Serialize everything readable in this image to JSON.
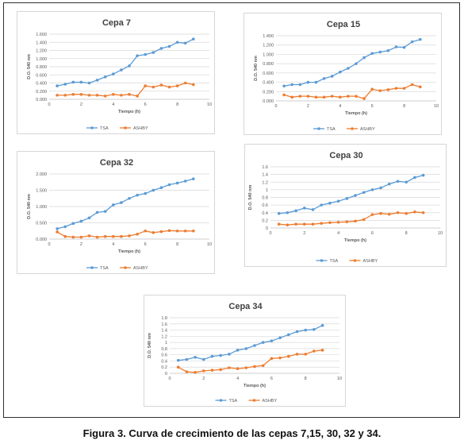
{
  "caption": "Figura 3. Curva de crecimiento de las cepas 7,15, 30, 32 y 34.",
  "colors": {
    "tsa": "#5b9bd5",
    "ashby": "#ed7d31",
    "grid": "#d9d9d9",
    "axis_text": "#595959",
    "title": "#404040"
  },
  "chart_data": [
    {
      "type": "line",
      "title": "Cepa 7",
      "xlabel": "Tiempo (h)",
      "ylabel": "D.O. 540 nm",
      "xlim": [
        0,
        10
      ],
      "ylim": [
        0,
        1.6
      ],
      "xticks": [
        "0",
        "2",
        "4",
        "6",
        "8",
        "10"
      ],
      "yticks": [
        "0.000",
        "0.200",
        "0.400",
        "0.600",
        "0.800",
        "1.000",
        "1.200",
        "1.400",
        "1.600"
      ],
      "legend_position": "bottom",
      "series": [
        {
          "name": "TSA",
          "x": [
            0.5,
            1,
            1.5,
            2,
            2.5,
            3,
            3.5,
            4,
            4.5,
            5,
            5.5,
            6,
            6.5,
            7,
            7.5,
            8,
            8.5,
            9
          ],
          "values": [
            0.33,
            0.37,
            0.42,
            0.42,
            0.4,
            0.47,
            0.55,
            0.62,
            0.72,
            0.82,
            1.07,
            1.1,
            1.15,
            1.25,
            1.3,
            1.4,
            1.38,
            1.48
          ]
        },
        {
          "name": "ASHBY",
          "x": [
            0.5,
            1,
            1.5,
            2,
            2.5,
            3,
            3.5,
            4,
            4.5,
            5,
            5.5,
            6,
            6.5,
            7,
            7.5,
            8,
            8.5,
            9
          ],
          "values": [
            0.1,
            0.1,
            0.12,
            0.12,
            0.1,
            0.1,
            0.08,
            0.12,
            0.1,
            0.12,
            0.08,
            0.33,
            0.3,
            0.35,
            0.3,
            0.33,
            0.4,
            0.36
          ]
        }
      ]
    },
    {
      "type": "line",
      "title": "Cepa 15",
      "xlabel": "Tiempo (h)",
      "ylabel": "D.O. 540 nm",
      "xlim": [
        0,
        10
      ],
      "ylim": [
        0,
        1.4
      ],
      "xticks": [
        "0",
        "2",
        "4",
        "6",
        "8",
        "10"
      ],
      "yticks": [
        "0.000",
        "0.200",
        "0.400",
        "0.600",
        "0.800",
        "1.000",
        "1.200",
        "1.400"
      ],
      "legend_position": "bottom",
      "series": [
        {
          "name": "TSA",
          "x": [
            0.5,
            1,
            1.5,
            2,
            2.5,
            3,
            3.5,
            4,
            4.5,
            5,
            5.5,
            6,
            6.5,
            7,
            7.5,
            8,
            8.5,
            9
          ],
          "values": [
            0.32,
            0.35,
            0.35,
            0.4,
            0.4,
            0.48,
            0.53,
            0.62,
            0.7,
            0.8,
            0.93,
            1.02,
            1.05,
            1.08,
            1.16,
            1.15,
            1.27,
            1.32
          ]
        },
        {
          "name": "ASHBY",
          "x": [
            0.5,
            1,
            1.5,
            2,
            2.5,
            3,
            3.5,
            4,
            4.5,
            5,
            5.5,
            6,
            6.5,
            7,
            7.5,
            8,
            8.5,
            9
          ],
          "values": [
            0.13,
            0.08,
            0.1,
            0.1,
            0.08,
            0.08,
            0.1,
            0.08,
            0.1,
            0.1,
            0.05,
            0.25,
            0.22,
            0.24,
            0.27,
            0.27,
            0.35,
            0.3
          ]
        }
      ]
    },
    {
      "type": "line",
      "title": "Cepa 32",
      "xlabel": "Tiempo (h)",
      "ylabel": "D.O. 540 nm",
      "xlim": [
        0,
        10
      ],
      "ylim": [
        0,
        2
      ],
      "xticks": [
        "0",
        "2",
        "4",
        "6",
        "8",
        "10"
      ],
      "yticks": [
        "0.000",
        "0.500",
        "1.000",
        "1.500",
        "2.000"
      ],
      "legend_position": "bottom",
      "series": [
        {
          "name": "TSA",
          "x": [
            0.5,
            1,
            1.5,
            2,
            2.5,
            3,
            3.5,
            4,
            4.5,
            5,
            5.5,
            6,
            6.5,
            7,
            7.5,
            8,
            8.5,
            9
          ],
          "values": [
            0.32,
            0.38,
            0.48,
            0.55,
            0.65,
            0.82,
            0.85,
            1.05,
            1.12,
            1.25,
            1.35,
            1.4,
            1.5,
            1.58,
            1.67,
            1.72,
            1.78,
            1.85
          ]
        },
        {
          "name": "ASHBY",
          "x": [
            0.5,
            1,
            1.5,
            2,
            2.5,
            3,
            3.5,
            4,
            4.5,
            5,
            5.5,
            6,
            6.5,
            7,
            7.5,
            8,
            8.5,
            9
          ],
          "values": [
            0.22,
            0.08,
            0.06,
            0.06,
            0.1,
            0.06,
            0.08,
            0.08,
            0.08,
            0.1,
            0.15,
            0.25,
            0.2,
            0.23,
            0.26,
            0.25,
            0.25,
            0.25
          ]
        }
      ]
    },
    {
      "type": "line",
      "title": "Cepa 30",
      "xlabel": "Tiempo (h)",
      "ylabel": "D.O. 540 nm",
      "xlim": [
        0,
        10
      ],
      "ylim": [
        0,
        1.6
      ],
      "xticks": [
        "0",
        "2",
        "4",
        "6",
        "8",
        "10"
      ],
      "yticks": [
        "0",
        "0.2",
        "0.4",
        "0.6",
        "0.8",
        "1",
        "1.2",
        "1.4",
        "1.6"
      ],
      "legend_position": "bottom",
      "series": [
        {
          "name": "TSA",
          "x": [
            0.5,
            1,
            1.5,
            2,
            2.5,
            3,
            3.5,
            4,
            4.5,
            5,
            5.5,
            6,
            6.5,
            7,
            7.5,
            8,
            8.5,
            9
          ],
          "values": [
            0.38,
            0.4,
            0.45,
            0.52,
            0.48,
            0.6,
            0.65,
            0.7,
            0.77,
            0.85,
            0.93,
            1.0,
            1.05,
            1.15,
            1.22,
            1.2,
            1.32,
            1.38
          ]
        },
        {
          "name": "ASHBY",
          "x": [
            0.5,
            1,
            1.5,
            2,
            2.5,
            3,
            3.5,
            4,
            4.5,
            5,
            5.5,
            6,
            6.5,
            7,
            7.5,
            8,
            8.5,
            9
          ],
          "values": [
            0.1,
            0.08,
            0.1,
            0.1,
            0.1,
            0.12,
            0.14,
            0.15,
            0.16,
            0.18,
            0.22,
            0.35,
            0.38,
            0.36,
            0.4,
            0.38,
            0.42,
            0.4
          ]
        }
      ]
    },
    {
      "type": "line",
      "title": "Cepa 34",
      "xlabel": "Tiempo (h)",
      "ylabel": "D.O. 540 nm",
      "xlim": [
        0,
        10
      ],
      "ylim": [
        0,
        1.8
      ],
      "xticks": [
        "0",
        "2",
        "4",
        "6",
        "8",
        "10"
      ],
      "yticks": [
        "0",
        "0.2",
        "0.4",
        "0.6",
        "0.8",
        "1",
        "1.2",
        "1.4",
        "1.6",
        "1.8"
      ],
      "legend_position": "bottom",
      "series": [
        {
          "name": "TSA",
          "x": [
            0.5,
            1,
            1.5,
            2,
            2.5,
            3,
            3.5,
            4,
            4.5,
            5,
            5.5,
            6,
            6.5,
            7,
            7.5,
            8,
            8.5,
            9
          ],
          "values": [
            0.42,
            0.45,
            0.52,
            0.45,
            0.55,
            0.58,
            0.62,
            0.75,
            0.8,
            0.9,
            1.0,
            1.05,
            1.15,
            1.25,
            1.35,
            1.4,
            1.42,
            1.55
          ]
        },
        {
          "name": "ASHBY",
          "x": [
            0.5,
            1,
            1.5,
            2,
            2.5,
            3,
            3.5,
            4,
            4.5,
            5,
            5.5,
            6,
            6.5,
            7,
            7.5,
            8,
            8.5,
            9
          ],
          "values": [
            0.2,
            0.05,
            0.03,
            0.08,
            0.1,
            0.12,
            0.18,
            0.15,
            0.18,
            0.22,
            0.25,
            0.48,
            0.5,
            0.55,
            0.62,
            0.62,
            0.72,
            0.75
          ]
        }
      ]
    }
  ]
}
